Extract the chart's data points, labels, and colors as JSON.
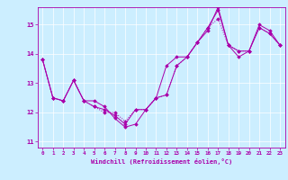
{
  "title": "",
  "xlabel": "Windchill (Refroidissement éolien,°C)",
  "ylabel": "",
  "bg_color": "#cceeff",
  "line_color": "#aa00aa",
  "xlim": [
    -0.5,
    23.5
  ],
  "ylim": [
    10.8,
    15.6
  ],
  "yticks": [
    11,
    12,
    13,
    14,
    15
  ],
  "xticks": [
    0,
    1,
    2,
    3,
    4,
    5,
    6,
    7,
    8,
    9,
    10,
    11,
    12,
    13,
    14,
    15,
    16,
    17,
    18,
    19,
    20,
    21,
    22,
    23
  ],
  "line1_x": [
    0,
    1,
    2,
    3,
    4,
    5,
    6,
    7,
    8,
    9,
    10,
    11,
    12,
    13,
    14,
    15,
    16,
    17,
    18,
    19,
    20,
    21,
    22,
    23
  ],
  "line1_y": [
    13.8,
    12.5,
    12.4,
    13.1,
    12.4,
    12.4,
    12.2,
    11.8,
    11.5,
    11.6,
    12.1,
    12.5,
    12.6,
    13.6,
    13.9,
    14.4,
    14.9,
    15.5,
    14.3,
    13.9,
    14.1,
    14.9,
    14.7,
    14.3
  ],
  "line2_x": [
    0,
    1,
    2,
    3,
    4,
    5,
    6,
    7,
    8,
    9,
    10,
    11,
    12,
    13,
    14,
    15,
    16,
    17,
    18,
    19,
    20,
    21,
    22,
    23
  ],
  "line2_y": [
    13.8,
    12.5,
    12.4,
    13.1,
    12.4,
    12.2,
    12.1,
    11.9,
    11.6,
    12.1,
    12.1,
    12.5,
    13.6,
    13.9,
    13.9,
    14.4,
    14.8,
    15.6,
    14.3,
    14.1,
    14.1,
    15.0,
    14.8,
    14.3
  ],
  "line3_x": [
    0,
    1,
    2,
    3,
    4,
    5,
    6,
    7,
    8,
    9,
    10,
    11,
    12,
    13,
    14,
    15,
    16,
    17,
    18,
    19,
    20,
    21,
    22,
    23
  ],
  "line3_y": [
    13.8,
    12.5,
    12.4,
    13.1,
    12.4,
    12.2,
    12.0,
    12.0,
    11.7,
    12.1,
    12.1,
    12.5,
    12.6,
    13.6,
    13.9,
    14.4,
    14.9,
    15.2,
    14.3,
    14.1,
    14.1,
    14.9,
    14.7,
    14.3
  ]
}
